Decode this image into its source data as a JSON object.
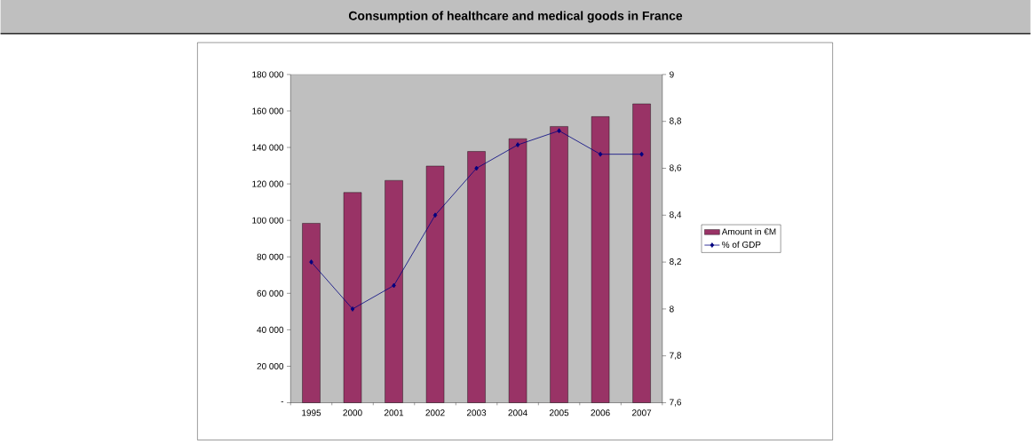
{
  "chart_data": {
    "type": "bar",
    "title": "Consumption of healthcare and medical goods in France",
    "categories": [
      "1995",
      "2000",
      "2001",
      "2002",
      "2003",
      "2004",
      "2005",
      "2006",
      "2007"
    ],
    "series": [
      {
        "name": "Amount in €M",
        "color": "#993366",
        "values": [
          98400,
          115300,
          121900,
          129800,
          137800,
          144800,
          151500,
          156900,
          163900
        ]
      },
      {
        "name": "% of GDP",
        "type": "line",
        "axis": "y2",
        "color": "#000080",
        "values": [
          8.2,
          8.0,
          8.1,
          8.4,
          8.6,
          8.7,
          8.76,
          8.66,
          8.66
        ]
      }
    ],
    "ylim": [
      0,
      180000
    ],
    "yticks": [
      {
        "value": 0,
        "label": "-"
      },
      {
        "value": 20000,
        "label": "20 000"
      },
      {
        "value": 40000,
        "label": "40 000"
      },
      {
        "value": 60000,
        "label": "60 000"
      },
      {
        "value": 80000,
        "label": "80 000"
      },
      {
        "value": 100000,
        "label": "100 000"
      },
      {
        "value": 120000,
        "label": "120 000"
      },
      {
        "value": 140000,
        "label": "140 000"
      },
      {
        "value": 160000,
        "label": "160 000"
      },
      {
        "value": 180000,
        "label": "180 000"
      }
    ],
    "y2lim": [
      7.6,
      9
    ],
    "y2ticks": [
      {
        "value": 7.6,
        "label": "7,6"
      },
      {
        "value": 7.8,
        "label": "7,8"
      },
      8,
      {
        "value": 8.2,
        "label": "8,2"
      },
      {
        "value": 8.4,
        "label": "8,4"
      },
      {
        "value": 8.6,
        "label": "8,6"
      },
      {
        "value": 8.8,
        "label": "8,8"
      },
      9
    ],
    "legend": "right",
    "marker": "diamond",
    "grid": false
  }
}
